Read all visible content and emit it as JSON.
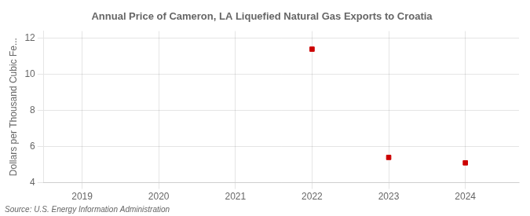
{
  "chart_data": {
    "type": "scatter",
    "title": "Annual Price of Cameron, LA Liquefied Natural Gas Exports to Croatia",
    "ylabel": "Dollars per Thousand Cubic Fe...",
    "annotation": "Source: U.S. Energy Information Administration",
    "x": [
      2022,
      2023,
      2024
    ],
    "values": [
      11.4,
      5.4,
      5.1
    ],
    "color": "#cc0000",
    "marker": "square",
    "xlim": [
      2018.5,
      2024.7
    ],
    "xticks": [
      2019,
      2020,
      2021,
      2022,
      2023,
      2024
    ],
    "ylim": [
      4,
      12.4
    ],
    "yticks": [
      4,
      6,
      8,
      10,
      12
    ],
    "grid": true
  }
}
